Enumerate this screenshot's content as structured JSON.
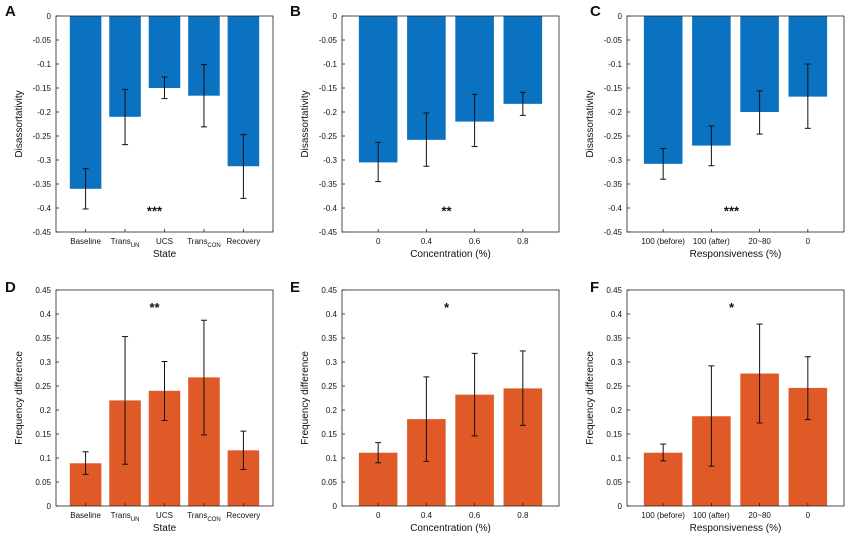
{
  "figure": {
    "panels": [
      {
        "label": "A",
        "significance": "***"
      },
      {
        "label": "B",
        "significance": "**"
      },
      {
        "label": "C",
        "significance": "***"
      },
      {
        "label": "D",
        "significance": "**"
      },
      {
        "label": "E",
        "significance": "*"
      },
      {
        "label": "F",
        "significance": "*"
      }
    ]
  },
  "chart_data": [
    {
      "panel": "A",
      "type": "bar",
      "color": "#0a72c0",
      "categories": [
        "Baseline",
        "TransUN",
        "UCS",
        "TransCON",
        "Recovery"
      ],
      "category_labels": [
        {
          "main": "Baseline",
          "sub": ""
        },
        {
          "main": "Trans",
          "sub": "UN"
        },
        {
          "main": "UCS",
          "sub": ""
        },
        {
          "main": "Trans",
          "sub": "CON"
        },
        {
          "main": "Recovery",
          "sub": ""
        }
      ],
      "values": [
        -0.36,
        -0.21,
        -0.15,
        -0.166,
        -0.313
      ],
      "err_low": [
        -0.402,
        -0.268,
        -0.172,
        -0.231,
        -0.38
      ],
      "err_high": [
        -0.318,
        -0.153,
        -0.127,
        -0.101,
        -0.247
      ],
      "xlabel": "State",
      "ylabel": "Disassortativity",
      "ylim": [
        -0.45,
        0
      ],
      "yticks": [
        0,
        -0.05,
        -0.1,
        -0.15,
        -0.2,
        -0.25,
        -0.3,
        -0.35,
        -0.4,
        -0.45
      ],
      "ytick_labels": [
        "0",
        "-0.05",
        "-0.1",
        "-0.15",
        "-0.2",
        "-0.25",
        "-0.3",
        "-0.35",
        "-0.4",
        "-0.45"
      ],
      "annotation": "***"
    },
    {
      "panel": "B",
      "type": "bar",
      "color": "#0a72c0",
      "categories": [
        "0",
        "0.4",
        "0.6",
        "0.8"
      ],
      "category_labels": [
        {
          "main": "0",
          "sub": ""
        },
        {
          "main": "0.4",
          "sub": ""
        },
        {
          "main": "0.6",
          "sub": ""
        },
        {
          "main": "0.8",
          "sub": ""
        }
      ],
      "values": [
        -0.305,
        -0.258,
        -0.22,
        -0.183
      ],
      "err_low": [
        -0.345,
        -0.313,
        -0.272,
        -0.207
      ],
      "err_high": [
        -0.263,
        -0.202,
        -0.163,
        -0.159
      ],
      "xlabel": "Concentration (%)",
      "ylabel": "Disassortativity",
      "ylim": [
        -0.45,
        0
      ],
      "yticks": [
        0,
        -0.05,
        -0.1,
        -0.15,
        -0.2,
        -0.25,
        -0.3,
        -0.35,
        -0.4,
        -0.45
      ],
      "ytick_labels": [
        "0",
        "-0.05",
        "-0.1",
        "-0.15",
        "-0.2",
        "-0.25",
        "-0.3",
        "-0.35",
        "-0.4",
        "-0.45"
      ],
      "annotation": "**"
    },
    {
      "panel": "C",
      "type": "bar",
      "color": "#0a72c0",
      "categories": [
        "100 (before)",
        "100 (after)",
        "20~80",
        "0"
      ],
      "category_labels": [
        {
          "main": "100 (before)",
          "sub": ""
        },
        {
          "main": "100 (after)",
          "sub": ""
        },
        {
          "main": "20~80",
          "sub": ""
        },
        {
          "main": "0",
          "sub": ""
        }
      ],
      "values": [
        -0.308,
        -0.27,
        -0.2,
        -0.168
      ],
      "err_low": [
        -0.34,
        -0.312,
        -0.246,
        -0.234
      ],
      "err_high": [
        -0.276,
        -0.229,
        -0.156,
        -0.1
      ],
      "xlabel": "Responsiveness (%)",
      "ylabel": "Disassortativity",
      "ylim": [
        -0.45,
        0
      ],
      "yticks": [
        0,
        -0.05,
        -0.1,
        -0.15,
        -0.2,
        -0.25,
        -0.3,
        -0.35,
        -0.4,
        -0.45
      ],
      "ytick_labels": [
        "0",
        "-0.05",
        "-0.1",
        "-0.15",
        "-0.2",
        "-0.25",
        "-0.3",
        "-0.35",
        "-0.4",
        "-0.45"
      ],
      "annotation": "***"
    },
    {
      "panel": "D",
      "type": "bar",
      "color": "#e05a28",
      "categories": [
        "Baseline",
        "TransUN",
        "UCS",
        "TransCON",
        "Recovery"
      ],
      "category_labels": [
        {
          "main": "Baseline",
          "sub": ""
        },
        {
          "main": "Trans",
          "sub": "UN"
        },
        {
          "main": "UCS",
          "sub": ""
        },
        {
          "main": "Trans",
          "sub": "CON"
        },
        {
          "main": "Recovery",
          "sub": ""
        }
      ],
      "values": [
        0.089,
        0.22,
        0.24,
        0.268,
        0.116
      ],
      "err_low": [
        0.066,
        0.087,
        0.178,
        0.148,
        0.076
      ],
      "err_high": [
        0.113,
        0.353,
        0.301,
        0.387,
        0.156
      ],
      "xlabel": "State",
      "ylabel": "Frequency difference",
      "ylim": [
        0,
        0.45
      ],
      "yticks": [
        0,
        0.05,
        0.1,
        0.15,
        0.2,
        0.25,
        0.3,
        0.35,
        0.4,
        0.45
      ],
      "ytick_labels": [
        "0",
        "0.05",
        "0.1",
        "0.15",
        "0.2",
        "0.25",
        "0.3",
        "0.35",
        "0.4",
        "0.45"
      ],
      "annotation": "**"
    },
    {
      "panel": "E",
      "type": "bar",
      "color": "#e05a28",
      "categories": [
        "0",
        "0.4",
        "0.6",
        "0.8"
      ],
      "category_labels": [
        {
          "main": "0",
          "sub": ""
        },
        {
          "main": "0.4",
          "sub": ""
        },
        {
          "main": "0.6",
          "sub": ""
        },
        {
          "main": "0.8",
          "sub": ""
        }
      ],
      "values": [
        0.111,
        0.181,
        0.232,
        0.245
      ],
      "err_low": [
        0.09,
        0.093,
        0.146,
        0.168
      ],
      "err_high": [
        0.132,
        0.269,
        0.318,
        0.323
      ],
      "xlabel": "Concentration (%)",
      "ylabel": "Frequency difference",
      "ylim": [
        0,
        0.45
      ],
      "yticks": [
        0,
        0.05,
        0.1,
        0.15,
        0.2,
        0.25,
        0.3,
        0.35,
        0.4,
        0.45
      ],
      "ytick_labels": [
        "0",
        "0.05",
        "0.1",
        "0.15",
        "0.2",
        "0.25",
        "0.3",
        "0.35",
        "0.4",
        "0.45"
      ],
      "annotation": "*"
    },
    {
      "panel": "F",
      "type": "bar",
      "color": "#e05a28",
      "categories": [
        "100 (before)",
        "100 (after)",
        "20~80",
        "0"
      ],
      "category_labels": [
        {
          "main": "100 (before)",
          "sub": ""
        },
        {
          "main": "100 (after)",
          "sub": ""
        },
        {
          "main": "20~80",
          "sub": ""
        },
        {
          "main": "0",
          "sub": ""
        }
      ],
      "values": [
        0.111,
        0.187,
        0.276,
        0.246
      ],
      "err_low": [
        0.094,
        0.083,
        0.173,
        0.18
      ],
      "err_high": [
        0.129,
        0.292,
        0.379,
        0.311
      ],
      "xlabel": "Responsiveness (%)",
      "ylabel": "Frequency difference",
      "ylim": [
        0,
        0.45
      ],
      "yticks": [
        0,
        0.05,
        0.1,
        0.15,
        0.2,
        0.25,
        0.3,
        0.35,
        0.4,
        0.45
      ],
      "ytick_labels": [
        "0",
        "0.05",
        "0.1",
        "0.15",
        "0.2",
        "0.25",
        "0.3",
        "0.35",
        "0.4",
        "0.45"
      ],
      "annotation": "*"
    }
  ]
}
